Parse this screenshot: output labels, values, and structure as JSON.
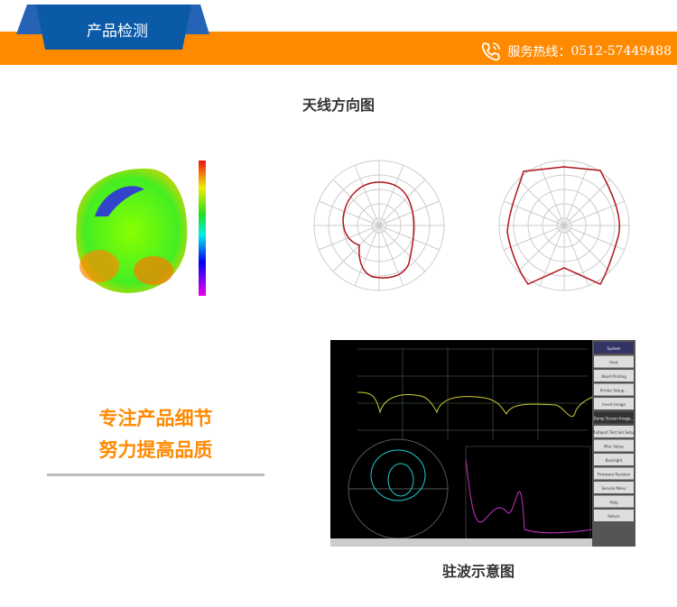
{
  "header": {
    "title": "产品检测",
    "hotline_label": "服务热线：",
    "hotline_number": "0512-57449488",
    "phone_icon": "phone-icon"
  },
  "colors": {
    "accent": "#ff8a00",
    "brand_blue": "#0a5aa8",
    "trace_red": "#b0131c"
  },
  "antenna": {
    "title": "天线方向图"
  },
  "slogan": {
    "line1": "专注产品细节",
    "line2": "努力提高品质"
  },
  "vswr": {
    "title": "驻波示意图",
    "menu": [
      "System",
      "Print",
      "Abort Printing",
      "Printer Setup...",
      "Invert Image",
      "Dump Screen Image...",
      "Multiport Test Set Setup",
      "Misc Setup",
      "Backlight",
      "Firmware Revision",
      "Service Menu",
      "Help",
      "Return"
    ]
  }
}
